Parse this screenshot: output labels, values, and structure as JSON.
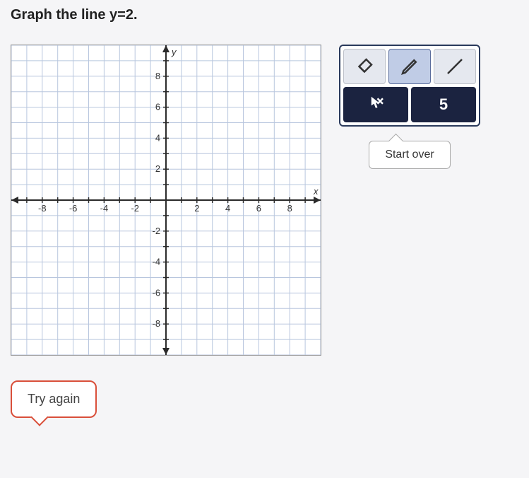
{
  "question": {
    "prompt": "Graph the line y=2."
  },
  "graph": {
    "type": "cartesian-grid",
    "xlim": [
      -10,
      10
    ],
    "ylim": [
      -10,
      10
    ],
    "xtick_step": 1,
    "ytick_step": 1,
    "xtick_labels": [
      -8,
      -6,
      -4,
      -2,
      2,
      4,
      6,
      8
    ],
    "ytick_labels": [
      8,
      6,
      4,
      2,
      -2,
      -4,
      -6,
      -8
    ],
    "x_axis_label": "x",
    "y_axis_label": "y",
    "grid_color": "#b8c6de",
    "axis_color": "#2a2a2a",
    "background_color": "#ffffff",
    "label_fontsize": 13,
    "label_color": "#333333"
  },
  "tools": {
    "eraser_label": "eraser",
    "pencil_label": "pencil",
    "line_label": "line",
    "move_label": "move",
    "reset_label": "reset",
    "reset_glyph": "5",
    "selected": "pencil",
    "start_over": "Start over"
  },
  "feedback": {
    "try_again": "Try again"
  },
  "colors": {
    "panel_border": "#2a3a5c",
    "dark_button": "#1b2340",
    "light_button": "#e5e8ef",
    "selected_button": "#c0cce6",
    "error_border": "#d94f3a"
  }
}
